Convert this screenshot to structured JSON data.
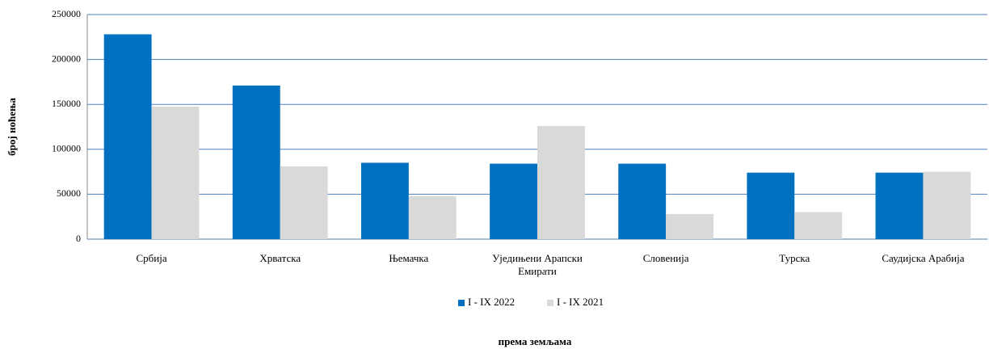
{
  "chart_data": {
    "type": "bar",
    "categories": [
      "Србија",
      "Хрватска",
      "Њемачка",
      "Уједињени Арапски Емирати",
      "Словенија",
      "Турска",
      "Саудијска Арабија"
    ],
    "series": [
      {
        "name": "I - IX 2022",
        "color": "#0070c0",
        "values": [
          228000,
          171000,
          85000,
          84000,
          84000,
          74000,
          74000
        ]
      },
      {
        "name": "I - IX 2021",
        "color": "#d9d9d9",
        "values": [
          147500,
          81000,
          48000,
          126000,
          28000,
          30000,
          75000
        ]
      }
    ],
    "ylim": [
      0,
      250000
    ],
    "yticks": [
      0,
      50000,
      100000,
      150000,
      200000,
      250000
    ],
    "grid": true,
    "ylabel": "број ноћења",
    "xlabel": "према земљама",
    "legend": "bottom"
  }
}
